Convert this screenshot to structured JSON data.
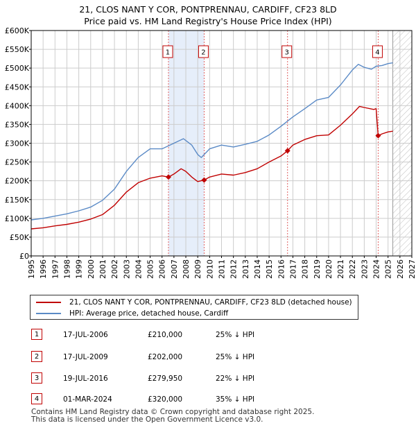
{
  "title_line1": "21, CLOS NANT Y COR, PONTPRENNAU, CARDIFF, CF23 8LD",
  "title_line2": "Price paid vs. HM Land Registry's House Price Index (HPI)",
  "colors": {
    "property": "#c00000",
    "hpi": "#5a8ac6",
    "sale_shade": "#e6eefa",
    "grid": "#cccccc",
    "future_hatch": "#bbbbbb"
  },
  "chart_data": {
    "type": "line",
    "title": "21, CLOS NANT Y COR, PONTPRENNAU, CARDIFF, CF23 8LD — Price paid vs. HM Land Registry's House Price Index (HPI)",
    "xlabel": "",
    "ylabel": "",
    "xlim": [
      1995,
      2027
    ],
    "ylim": [
      0,
      600000
    ],
    "x_ticks": [
      "1995",
      "1996",
      "1997",
      "1998",
      "1999",
      "2000",
      "2001",
      "2002",
      "2003",
      "2004",
      "2005",
      "2006",
      "2007",
      "2008",
      "2009",
      "2010",
      "2011",
      "2012",
      "2013",
      "2014",
      "2015",
      "2016",
      "2017",
      "2018",
      "2019",
      "2020",
      "2021",
      "2022",
      "2023",
      "2024",
      "2025",
      "2026",
      "2027"
    ],
    "y_ticks": [
      {
        "value": 0,
        "label": "£0"
      },
      {
        "value": 50000,
        "label": "£50K"
      },
      {
        "value": 100000,
        "label": "£100K"
      },
      {
        "value": 150000,
        "label": "£150K"
      },
      {
        "value": 200000,
        "label": "£200K"
      },
      {
        "value": 250000,
        "label": "£250K"
      },
      {
        "value": 300000,
        "label": "£300K"
      },
      {
        "value": 350000,
        "label": "£350K"
      },
      {
        "value": 400000,
        "label": "£400K"
      },
      {
        "value": 450000,
        "label": "£450K"
      },
      {
        "value": 500000,
        "label": "£500K"
      },
      {
        "value": 550000,
        "label": "£550K"
      },
      {
        "value": 600000,
        "label": "£600K"
      }
    ],
    "grid": true,
    "data_end": 2025.4,
    "shaded_periods": [
      [
        2006.54,
        2009.54
      ]
    ],
    "series": [
      {
        "name": "21, CLOS NANT Y COR, PONTPRENNAU, CARDIFF, CF23 8LD (detached house)",
        "color": "#c00000",
        "x": [
          1995,
          1996,
          1997,
          1998,
          1999,
          2000,
          2001,
          2002,
          2003,
          2004,
          2005,
          2006,
          2006.54,
          2007,
          2007.6,
          2008,
          2008.5,
          2009,
          2009.54,
          2010,
          2011,
          2012,
          2013,
          2014,
          2015,
          2016,
          2016.55,
          2017,
          2018,
          2019,
          2020,
          2021,
          2022,
          2022.6,
          2023,
          2023.8,
          2024.0,
          2024.17,
          2024.5,
          2025,
          2025.4
        ],
        "values": [
          72000,
          75000,
          80000,
          84000,
          90000,
          98000,
          110000,
          135000,
          170000,
          195000,
          207000,
          213000,
          210000,
          218000,
          232000,
          225000,
          210000,
          198000,
          202000,
          210000,
          218000,
          215000,
          222000,
          232000,
          250000,
          266000,
          279950,
          295000,
          310000,
          320000,
          322000,
          348000,
          378000,
          398000,
          395000,
          390000,
          392000,
          320000,
          325000,
          330000,
          332000
        ]
      },
      {
        "name": "HPI: Average price, detached house, Cardiff",
        "color": "#5a8ac6",
        "x": [
          1995,
          1996,
          1997,
          1998,
          1999,
          2000,
          2001,
          2002,
          2003,
          2004,
          2005,
          2006,
          2007,
          2007.8,
          2008.5,
          2009,
          2009.3,
          2010,
          2011,
          2012,
          2013,
          2014,
          2015,
          2016,
          2017,
          2018,
          2019,
          2020,
          2021,
          2022,
          2022.5,
          2023,
          2023.6,
          2024,
          2024.5,
          2025,
          2025.4
        ],
        "values": [
          96000,
          100000,
          106000,
          112000,
          120000,
          130000,
          148000,
          178000,
          225000,
          262000,
          285000,
          285000,
          300000,
          312000,
          295000,
          270000,
          262000,
          285000,
          295000,
          290000,
          297000,
          305000,
          322000,
          345000,
          370000,
          392000,
          415000,
          422000,
          455000,
          495000,
          510000,
          502000,
          497000,
          505000,
          507000,
          512000,
          514000
        ]
      }
    ],
    "annotations": [
      {
        "label": "1",
        "x": 2006.54,
        "value": 210000
      },
      {
        "label": "2",
        "x": 2009.54,
        "value": 202000
      },
      {
        "label": "3",
        "x": 2016.55,
        "value": 279950
      },
      {
        "label": "4",
        "x": 2024.17,
        "value": 320000
      }
    ]
  },
  "legend": {
    "property_label": "21, CLOS NANT Y COR, PONTPRENNAU, CARDIFF, CF23 8LD (detached house)",
    "hpi_label": "HPI: Average price, detached house, Cardiff"
  },
  "sales": [
    {
      "num": "1",
      "date": "17-JUL-2006",
      "price": "£210,000",
      "hpi": "25% ↓ HPI"
    },
    {
      "num": "2",
      "date": "17-JUL-2009",
      "price": "£202,000",
      "hpi": "25% ↓ HPI"
    },
    {
      "num": "3",
      "date": "19-JUL-2016",
      "price": "£279,950",
      "hpi": "22% ↓ HPI"
    },
    {
      "num": "4",
      "date": "01-MAR-2024",
      "price": "£320,000",
      "hpi": "35% ↓ HPI"
    }
  ],
  "footer_line1": "Contains HM Land Registry data © Crown copyright and database right 2025.",
  "footer_line2": "This data is licensed under the Open Government Licence v3.0."
}
